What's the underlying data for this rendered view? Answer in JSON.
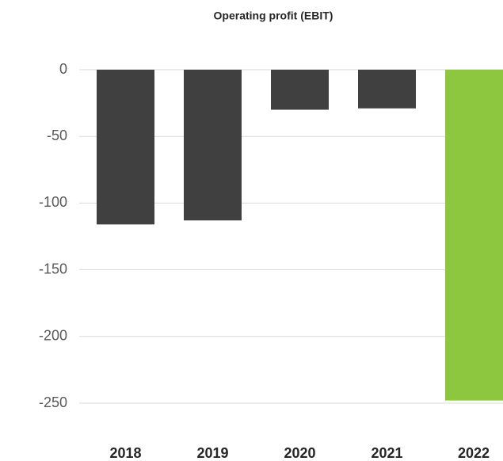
{
  "chart_data": {
    "type": "bar",
    "title": "Operating profit (EBIT)",
    "categories": [
      "2018",
      "2019",
      "2020",
      "2021",
      "2022"
    ],
    "values": [
      -116,
      -113,
      -30,
      -29,
      -248
    ],
    "colors": [
      "#404040",
      "#404040",
      "#404040",
      "#404040",
      "#8dc63f"
    ],
    "ylim": [
      -250,
      0
    ],
    "yticks": [
      0,
      -50,
      -100,
      -150,
      -200,
      -250
    ],
    "grid": true
  }
}
